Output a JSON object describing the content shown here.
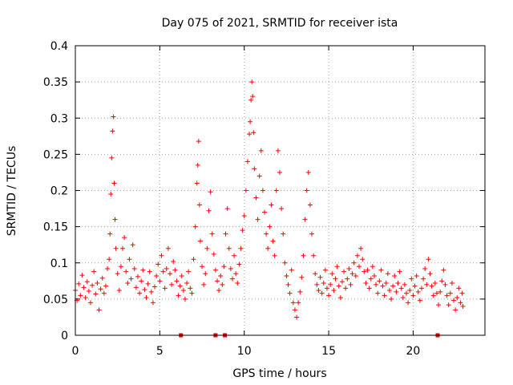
{
  "chart_data": {
    "type": "scatter",
    "title": "Day 075 of 2021, SRMTID for receiver ista",
    "xlabel": "GPS time / hours",
    "ylabel": "SRMTID / TECUs",
    "xlim": [
      0,
      24.25
    ],
    "ylim": [
      0,
      0.4
    ],
    "xticks": [
      0,
      5,
      10,
      15,
      20
    ],
    "xtick_labels": [
      "0",
      "5",
      "10",
      "15",
      "20"
    ],
    "yticks": [
      0,
      0.05,
      0.1,
      0.15,
      0.2,
      0.25,
      0.3,
      0.35,
      0.4
    ],
    "ytick_labels": [
      "0",
      "0.05",
      "0.1",
      "0.15",
      "0.2",
      "0.25",
      "0.3",
      "0.35",
      "0.4"
    ],
    "grid": true,
    "legend": "none",
    "marker": "plus",
    "color": "#ff0000",
    "gap_marker_color": "#dd0000",
    "points": [
      [
        0.0,
        0.062
      ],
      [
        0.1,
        0.048
      ],
      [
        0.2,
        0.071
      ],
      [
        0.3,
        0.055
      ],
      [
        0.4,
        0.083
      ],
      [
        0.5,
        0.066
      ],
      [
        0.6,
        0.052
      ],
      [
        0.7,
        0.074
      ],
      [
        0.8,
        0.061
      ],
      [
        0.9,
        0.045
      ],
      [
        1.0,
        0.069
      ],
      [
        1.1,
        0.088
      ],
      [
        1.2,
        0.057
      ],
      [
        1.3,
        0.072
      ],
      [
        1.4,
        0.035
      ],
      [
        1.5,
        0.064
      ],
      [
        1.6,
        0.079
      ],
      [
        1.7,
        0.058
      ],
      [
        1.8,
        0.068
      ],
      [
        1.9,
        0.092
      ],
      [
        2.0,
        0.105
      ],
      [
        2.05,
        0.14
      ],
      [
        2.1,
        0.195
      ],
      [
        2.15,
        0.245
      ],
      [
        2.2,
        0.282
      ],
      [
        2.25,
        0.302
      ],
      [
        2.3,
        0.21
      ],
      [
        2.35,
        0.16
      ],
      [
        2.4,
        0.12
      ],
      [
        2.5,
        0.085
      ],
      [
        2.6,
        0.062
      ],
      [
        2.7,
        0.095
      ],
      [
        2.8,
        0.12
      ],
      [
        2.9,
        0.135
      ],
      [
        3.0,
        0.088
      ],
      [
        3.1,
        0.072
      ],
      [
        3.2,
        0.105
      ],
      [
        3.3,
        0.078
      ],
      [
        3.4,
        0.125
      ],
      [
        3.5,
        0.092
      ],
      [
        3.6,
        0.066
      ],
      [
        3.7,
        0.081
      ],
      [
        3.8,
        0.058
      ],
      [
        3.9,
        0.075
      ],
      [
        4.0,
        0.09
      ],
      [
        4.1,
        0.063
      ],
      [
        4.2,
        0.052
      ],
      [
        4.3,
        0.071
      ],
      [
        4.4,
        0.088
      ],
      [
        4.5,
        0.06
      ],
      [
        4.6,
        0.045
      ],
      [
        4.7,
        0.067
      ],
      [
        4.8,
        0.082
      ],
      [
        4.9,
        0.098
      ],
      [
        5.0,
        0.075
      ],
      [
        5.1,
        0.11
      ],
      [
        5.2,
        0.088
      ],
      [
        5.3,
        0.065
      ],
      [
        5.4,
        0.092
      ],
      [
        5.5,
        0.12
      ],
      [
        5.6,
        0.085
      ],
      [
        5.7,
        0.07
      ],
      [
        5.8,
        0.102
      ],
      [
        5.9,
        0.09
      ],
      [
        6.0,
        0.075
      ],
      [
        6.1,
        0.055
      ],
      [
        6.2,
        0.068
      ],
      [
        6.3,
        0.082
      ],
      [
        6.4,
        0.062
      ],
      [
        6.5,
        0.05
      ],
      [
        6.6,
        0.072
      ],
      [
        6.7,
        0.088
      ],
      [
        6.8,
        0.065
      ],
      [
        6.9,
        0.058
      ],
      [
        7.0,
        0.105
      ],
      [
        7.1,
        0.15
      ],
      [
        7.2,
        0.21
      ],
      [
        7.25,
        0.235
      ],
      [
        7.3,
        0.268
      ],
      [
        7.35,
        0.18
      ],
      [
        7.4,
        0.13
      ],
      [
        7.5,
        0.095
      ],
      [
        7.6,
        0.07
      ],
      [
        7.7,
        0.085
      ],
      [
        7.8,
        0.12
      ],
      [
        7.9,
        0.172
      ],
      [
        8.0,
        0.198
      ],
      [
        8.1,
        0.14
      ],
      [
        8.2,
        0.112
      ],
      [
        8.3,
        0.09
      ],
      [
        8.4,
        0.075
      ],
      [
        8.5,
        0.062
      ],
      [
        8.6,
        0.082
      ],
      [
        8.7,
        0.07
      ],
      [
        8.8,
        0.095
      ],
      [
        8.9,
        0.14
      ],
      [
        9.0,
        0.175
      ],
      [
        9.1,
        0.12
      ],
      [
        9.2,
        0.092
      ],
      [
        9.3,
        0.078
      ],
      [
        9.4,
        0.11
      ],
      [
        9.5,
        0.085
      ],
      [
        9.6,
        0.072
      ],
      [
        9.7,
        0.098
      ],
      [
        9.8,
        0.12
      ],
      [
        9.9,
        0.145
      ],
      [
        10.0,
        0.165
      ],
      [
        10.1,
        0.2
      ],
      [
        10.2,
        0.24
      ],
      [
        10.3,
        0.278
      ],
      [
        10.35,
        0.295
      ],
      [
        10.4,
        0.325
      ],
      [
        10.45,
        0.35
      ],
      [
        10.5,
        0.33
      ],
      [
        10.55,
        0.28
      ],
      [
        10.6,
        0.23
      ],
      [
        10.7,
        0.19
      ],
      [
        10.8,
        0.16
      ],
      [
        10.9,
        0.22
      ],
      [
        11.0,
        0.255
      ],
      [
        11.1,
        0.2
      ],
      [
        11.2,
        0.17
      ],
      [
        11.3,
        0.14
      ],
      [
        11.4,
        0.12
      ],
      [
        11.5,
        0.15
      ],
      [
        11.6,
        0.18
      ],
      [
        11.7,
        0.13
      ],
      [
        11.8,
        0.11
      ],
      [
        11.9,
        0.2
      ],
      [
        12.0,
        0.255
      ],
      [
        12.1,
        0.225
      ],
      [
        12.2,
        0.175
      ],
      [
        12.3,
        0.14
      ],
      [
        12.4,
        0.1
      ],
      [
        12.5,
        0.082
      ],
      [
        12.6,
        0.07
      ],
      [
        12.7,
        0.058
      ],
      [
        12.8,
        0.09
      ],
      [
        12.9,
        0.045
      ],
      [
        13.0,
        0.035
      ],
      [
        13.1,
        0.025
      ],
      [
        13.2,
        0.045
      ],
      [
        13.3,
        0.06
      ],
      [
        13.4,
        0.08
      ],
      [
        13.5,
        0.11
      ],
      [
        13.6,
        0.16
      ],
      [
        13.7,
        0.2
      ],
      [
        13.8,
        0.225
      ],
      [
        13.9,
        0.18
      ],
      [
        14.0,
        0.14
      ],
      [
        14.1,
        0.11
      ],
      [
        14.2,
        0.085
      ],
      [
        14.3,
        0.07
      ],
      [
        14.4,
        0.062
      ],
      [
        14.5,
        0.08
      ],
      [
        14.6,
        0.058
      ],
      [
        14.7,
        0.072
      ],
      [
        14.8,
        0.09
      ],
      [
        14.9,
        0.065
      ],
      [
        15.0,
        0.055
      ],
      [
        15.1,
        0.07
      ],
      [
        15.2,
        0.085
      ],
      [
        15.3,
        0.062
      ],
      [
        15.4,
        0.078
      ],
      [
        15.5,
        0.095
      ],
      [
        15.6,
        0.068
      ],
      [
        15.7,
        0.052
      ],
      [
        15.8,
        0.074
      ],
      [
        15.9,
        0.088
      ],
      [
        16.0,
        0.065
      ],
      [
        16.1,
        0.078
      ],
      [
        16.2,
        0.092
      ],
      [
        16.3,
        0.07
      ],
      [
        16.4,
        0.085
      ],
      [
        16.5,
        0.1
      ],
      [
        16.6,
        0.082
      ],
      [
        16.7,
        0.11
      ],
      [
        16.8,
        0.095
      ],
      [
        16.9,
        0.12
      ],
      [
        17.0,
        0.105
      ],
      [
        17.1,
        0.088
      ],
      [
        17.2,
        0.072
      ],
      [
        17.3,
        0.09
      ],
      [
        17.4,
        0.065
      ],
      [
        17.5,
        0.078
      ],
      [
        17.6,
        0.095
      ],
      [
        17.7,
        0.082
      ],
      [
        17.8,
        0.07
      ],
      [
        17.9,
        0.058
      ],
      [
        18.0,
        0.075
      ],
      [
        18.1,
        0.09
      ],
      [
        18.2,
        0.068
      ],
      [
        18.3,
        0.055
      ],
      [
        18.4,
        0.072
      ],
      [
        18.5,
        0.085
      ],
      [
        18.6,
        0.062
      ],
      [
        18.7,
        0.05
      ],
      [
        18.8,
        0.068
      ],
      [
        18.9,
        0.082
      ],
      [
        19.0,
        0.06
      ],
      [
        19.1,
        0.072
      ],
      [
        19.2,
        0.088
      ],
      [
        19.3,
        0.065
      ],
      [
        19.4,
        0.052
      ],
      [
        19.5,
        0.07
      ],
      [
        19.6,
        0.058
      ],
      [
        19.7,
        0.045
      ],
      [
        19.8,
        0.062
      ],
      [
        19.9,
        0.078
      ],
      [
        20.0,
        0.055
      ],
      [
        20.1,
        0.068
      ],
      [
        20.2,
        0.082
      ],
      [
        20.3,
        0.06
      ],
      [
        20.4,
        0.048
      ],
      [
        20.5,
        0.065
      ],
      [
        20.6,
        0.078
      ],
      [
        20.7,
        0.092
      ],
      [
        20.8,
        0.07
      ],
      [
        20.9,
        0.105
      ],
      [
        21.0,
        0.085
      ],
      [
        21.1,
        0.068
      ],
      [
        21.2,
        0.055
      ],
      [
        21.3,
        0.072
      ],
      [
        21.4,
        0.058
      ],
      [
        21.5,
        0.042
      ],
      [
        21.6,
        0.06
      ],
      [
        21.7,
        0.075
      ],
      [
        21.8,
        0.09
      ],
      [
        21.9,
        0.07
      ],
      [
        22.0,
        0.055
      ],
      [
        22.1,
        0.042
      ],
      [
        22.2,
        0.058
      ],
      [
        22.3,
        0.072
      ],
      [
        22.4,
        0.048
      ],
      [
        22.5,
        0.035
      ],
      [
        22.6,
        0.052
      ],
      [
        22.7,
        0.065
      ],
      [
        22.8,
        0.045
      ],
      [
        22.9,
        0.058
      ],
      [
        22.95,
        0.04
      ]
    ],
    "gap_markers": [
      6.25,
      8.3,
      8.85,
      21.45
    ]
  }
}
